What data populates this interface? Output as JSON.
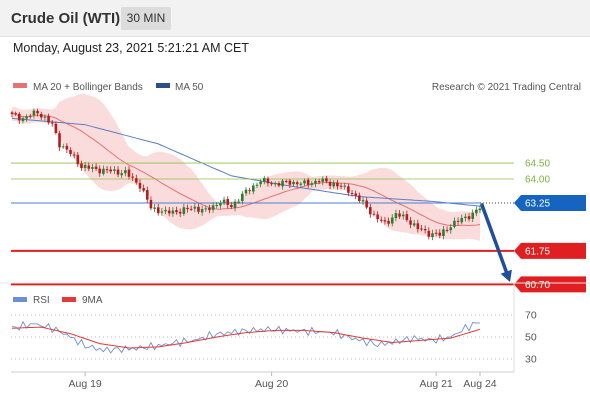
{
  "header": {
    "title": "Crude Oil (WTI)",
    "timeframe": "30 MIN"
  },
  "datetime": "Monday, August 23, 2021 5:21:21 AM CET",
  "legend": {
    "ma20_bb": "MA 20 + Bollinger Bands",
    "ma50": "MA 50",
    "copyright": "Research © 2021 Trading Central"
  },
  "rsi_legend": {
    "rsi": "RSI",
    "ma9": "9MA"
  },
  "colors": {
    "candle_up": "#2e7d32",
    "candle_down": "#b71c1c",
    "ma20": "#e57373",
    "bollinger_fill": "#f9d6d6",
    "ma50": "#5b7cc4",
    "resistance": "#8bc34a",
    "current": "#1565c0",
    "support": "#e02020",
    "arrow": "#1f4e9c",
    "rsi": "#6b8fd6",
    "rsi_ma": "#e53935"
  },
  "chart_data": [
    {
      "type": "candlestick",
      "title": "Crude Oil (WTI)",
      "timeframe": "30 MIN",
      "x_ticks": [
        "Aug 19",
        "Aug 20",
        "Aug 21",
        "Aug 24"
      ],
      "ylim": [
        60.4,
        66.6
      ],
      "overlays": [
        "MA 20 + Bollinger Bands",
        "MA 50"
      ],
      "price_key": [
        [
          0,
          66.0
        ],
        [
          3,
          65.9
        ],
        [
          7,
          66.1
        ],
        [
          9,
          65.9
        ],
        [
          11,
          65.7
        ],
        [
          13,
          65.1
        ],
        [
          16,
          64.8
        ],
        [
          19,
          64.4
        ],
        [
          23,
          64.3
        ],
        [
          27,
          64.25
        ],
        [
          31,
          64.2
        ],
        [
          35,
          63.8
        ],
        [
          38,
          63.1
        ],
        [
          42,
          62.95
        ],
        [
          46,
          63.0
        ],
        [
          50,
          63.1
        ],
        [
          53,
          63.0
        ],
        [
          57,
          63.3
        ],
        [
          60,
          63.15
        ],
        [
          64,
          63.6
        ],
        [
          68,
          63.95
        ],
        [
          72,
          63.85
        ],
        [
          76,
          63.9
        ],
        [
          80,
          63.85
        ],
        [
          84,
          63.95
        ],
        [
          88,
          63.85
        ],
        [
          92,
          63.65
        ],
        [
          96,
          63.25
        ],
        [
          99,
          62.85
        ],
        [
          102,
          62.6
        ],
        [
          105,
          62.9
        ],
        [
          108,
          62.75
        ],
        [
          111,
          62.45
        ],
        [
          114,
          62.3
        ],
        [
          117,
          62.25
        ],
        [
          120,
          62.55
        ],
        [
          123,
          62.75
        ],
        [
          126,
          62.9
        ],
        [
          128,
          63.1
        ]
      ],
      "ma50_key": [
        [
          0,
          65.9
        ],
        [
          20,
          65.7
        ],
        [
          40,
          65.1
        ],
        [
          60,
          64.1
        ],
        [
          75,
          63.8
        ],
        [
          95,
          63.45
        ],
        [
          115,
          63.3
        ],
        [
          128,
          63.15
        ]
      ],
      "levels": [
        {
          "label": "64.50",
          "value": 64.5,
          "kind": "resistance"
        },
        {
          "label": "64.00",
          "value": 64.0,
          "kind": "resistance"
        },
        {
          "label": "63.25",
          "value": 63.25,
          "kind": "current"
        },
        {
          "label": "61.75",
          "value": 61.75,
          "kind": "support"
        },
        {
          "label": "60.70",
          "value": 60.7,
          "kind": "support"
        }
      ],
      "forecast_arrow": {
        "from": 63.25,
        "to": 60.7
      }
    },
    {
      "type": "line",
      "title": "RSI",
      "series": [
        {
          "name": "RSI"
        },
        {
          "name": "9MA"
        }
      ],
      "ylim": [
        20,
        80
      ],
      "y_ticks": [
        70,
        50,
        30
      ],
      "rsi_key": [
        [
          0,
          58
        ],
        [
          6,
          62
        ],
        [
          11,
          58
        ],
        [
          15,
          52
        ],
        [
          20,
          42
        ],
        [
          25,
          38
        ],
        [
          30,
          39
        ],
        [
          35,
          40
        ],
        [
          40,
          42
        ],
        [
          45,
          45
        ],
        [
          50,
          47
        ],
        [
          55,
          52
        ],
        [
          62,
          55
        ],
        [
          70,
          57
        ],
        [
          75,
          56
        ],
        [
          82,
          55
        ],
        [
          88,
          54
        ],
        [
          94,
          48
        ],
        [
          100,
          43
        ],
        [
          104,
          45
        ],
        [
          110,
          49
        ],
        [
          115,
          47
        ],
        [
          120,
          50
        ],
        [
          124,
          58
        ],
        [
          128,
          64
        ]
      ],
      "rsi_ma_key": [
        [
          0,
          58
        ],
        [
          8,
          59
        ],
        [
          16,
          53
        ],
        [
          24,
          44
        ],
        [
          32,
          40
        ],
        [
          40,
          41
        ],
        [
          48,
          45
        ],
        [
          56,
          50
        ],
        [
          64,
          54
        ],
        [
          72,
          56
        ],
        [
          80,
          56
        ],
        [
          88,
          54
        ],
        [
          96,
          49
        ],
        [
          104,
          45
        ],
        [
          112,
          47
        ],
        [
          120,
          49
        ],
        [
          128,
          57
        ]
      ]
    }
  ]
}
